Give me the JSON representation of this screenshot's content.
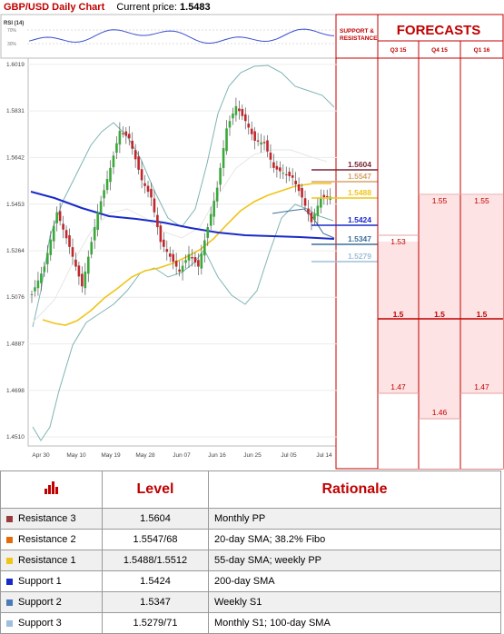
{
  "header": {
    "title": "GBP/USD Daily Chart",
    "current_label": "Current price:",
    "current_value": "1.5483"
  },
  "rsi_label": "RSI (14)",
  "rsi_ticks": [
    "70%",
    "30%"
  ],
  "sr_header": "SUPPORT & RESISTANCE",
  "forecast_title": "FORECASTS",
  "chart_data": [
    {
      "type": "candlestick",
      "title": "GBP/USD Daily Chart",
      "y_ticks": [
        "1.6019",
        "1.5831",
        "1.5642",
        "1.5453",
        "1.5264",
        "1.5076",
        "1.4887",
        "1.4698",
        "1.4510"
      ],
      "ylim": [
        1.451,
        1.6019
      ],
      "x_ticks": [
        "Apr 30",
        "May 10",
        "May 19",
        "May 28",
        "Jun 07",
        "Jun 16",
        "Jun 25",
        "Jul 05",
        "Jul 14"
      ],
      "levels": [
        {
          "label": "1.5604",
          "value": 1.5604,
          "color": "#7b2536"
        },
        {
          "label": "1.5547",
          "value": 1.5547,
          "color": "#d7a36a"
        },
        {
          "label": "1.5488",
          "value": 1.5488,
          "color": "#f0c419"
        },
        {
          "label": "1.5424",
          "value": 1.5424,
          "color": "#1a2ac8"
        },
        {
          "label": "1.5347",
          "value": 1.5347,
          "color": "#3f6f9a"
        },
        {
          "label": "1.5279",
          "value": 1.5279,
          "color": "#9fbfd6"
        }
      ]
    },
    {
      "type": "table",
      "title": "FORECASTS",
      "columns": [
        "Q3 15",
        "Q4 15",
        "Q1 16"
      ],
      "rows": [
        {
          "values": [
            "1.53",
            "1.55",
            "1.55"
          ]
        },
        {
          "values": [
            "1.5",
            "1.5",
            "1.5"
          ]
        },
        {
          "values": [
            "1.47",
            "1.46",
            "1.47"
          ]
        }
      ]
    }
  ],
  "table": {
    "level_header": "Level",
    "rationale_header": "Rationale",
    "rows": [
      {
        "name": "Resistance 3",
        "level": "1.5604",
        "rationale": "Monthly PP",
        "color": "#9b3a3a"
      },
      {
        "name": "Resistance 2",
        "level": "1.5547/68",
        "rationale": "20-day SMA; 38.2% Fibo",
        "color": "#e36c0a"
      },
      {
        "name": "Resistance 1",
        "level": "1.5488/1.5512",
        "rationale": "55-day SMA; weekly PP",
        "color": "#f0c419"
      },
      {
        "name": "Support 1",
        "level": "1.5424",
        "rationale": "200-day SMA",
        "color": "#1a2ac8"
      },
      {
        "name": "Support 2",
        "level": "1.5347",
        "rationale": "Weekly S1",
        "color": "#4a7ab8"
      },
      {
        "name": "Support 3",
        "level": "1.5279/71",
        "rationale": "Monthly S1; 100-day SMA",
        "color": "#9fbfe0"
      }
    ]
  }
}
